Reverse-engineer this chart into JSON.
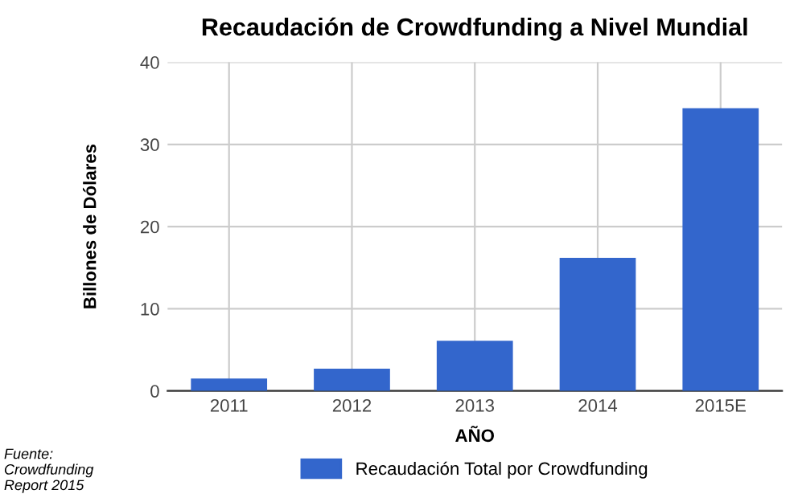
{
  "chart_data": {
    "type": "bar",
    "title": "Recaudación de Crowdfunding a Nivel Mundial",
    "xlabel": "AÑO",
    "ylabel": "Billones de Dólares",
    "categories": [
      "2011",
      "2012",
      "2013",
      "2014",
      "2015E"
    ],
    "series": [
      {
        "name": "Recaudación Total por Crowdfunding",
        "color": "#3366cc",
        "values": [
          1.5,
          2.7,
          6.1,
          16.2,
          34.4
        ]
      }
    ],
    "ylim": [
      0,
      40
    ],
    "yticks": [
      0,
      10,
      20,
      30,
      40
    ],
    "grid": true,
    "legend": "bottom",
    "annotations": [
      "Fuente:\nCrowdfunding\nReport 2015"
    ]
  }
}
